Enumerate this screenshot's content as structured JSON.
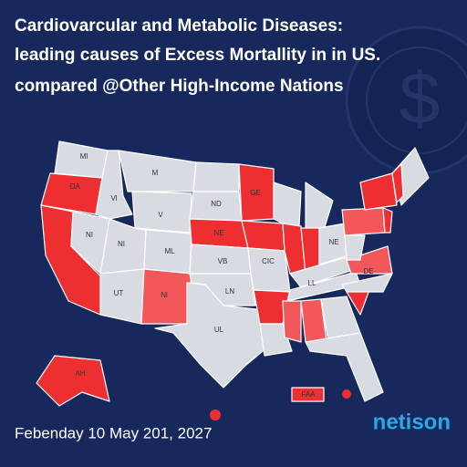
{
  "header": {
    "title_lines": [
      "Cardiovarcular and Metabolic Diseases:",
      "leading causes of Excess Mortallity in in US.",
      "compared @Other High-Income Nations"
    ]
  },
  "map": {
    "labels": [
      "Ml",
      "OA",
      "M",
      "Vl",
      "V",
      "NI",
      "NI",
      "ML",
      "ND",
      "GE",
      "NE",
      "VB",
      "UT",
      "Nl",
      "LN",
      "UL",
      "CIC",
      "NE",
      "LL",
      "DE",
      "AH",
      "FAA"
    ]
  },
  "footer": {
    "date": "Febenday 10 May 201, 2027",
    "brand": "netison"
  }
}
